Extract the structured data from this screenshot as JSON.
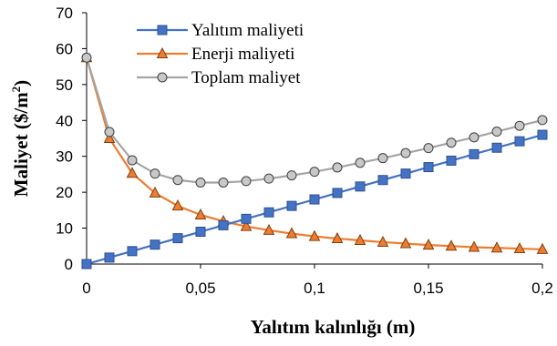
{
  "chart_data": {
    "type": "line",
    "xlabel": "Yalıtım kalınlığı (m)",
    "ylabel": "Maliyet ($/m",
    "ylabel_sup": "2",
    "ylabel_end": ")",
    "xlim": [
      0,
      0.2
    ],
    "ylim": [
      0,
      70
    ],
    "x_ticks": [
      0,
      0.05,
      0.1,
      0.15,
      0.2
    ],
    "x_tick_labels": [
      "0",
      "0,05",
      "0,1",
      "0,15",
      "0,2"
    ],
    "y_ticks": [
      0,
      10,
      20,
      30,
      40,
      50,
      60,
      70
    ],
    "y_tick_labels": [
      "0",
      "10",
      "20",
      "30",
      "40",
      "50",
      "60",
      "70"
    ],
    "grid": false,
    "legend_position": "top-center",
    "x": [
      0,
      0.01,
      0.02,
      0.03,
      0.04,
      0.05,
      0.06,
      0.07,
      0.08,
      0.09,
      0.1,
      0.11,
      0.12,
      0.13,
      0.14,
      0.15,
      0.16,
      0.17,
      0.18,
      0.19,
      0.2
    ],
    "series": [
      {
        "name": "Yalıtım maliyeti",
        "color": "#4472c4",
        "marker": "square",
        "values": [
          0,
          1.8,
          3.6,
          5.4,
          7.2,
          9.0,
          10.8,
          12.6,
          14.4,
          16.2,
          18.0,
          19.8,
          21.6,
          23.4,
          25.2,
          27.0,
          28.8,
          30.6,
          32.4,
          34.2,
          36.0
        ]
      },
      {
        "name": "Enerji maliyeti",
        "color": "#ed7d31",
        "marker": "triangle",
        "values": [
          57.5,
          35.0,
          25.3,
          19.8,
          16.2,
          13.7,
          11.9,
          10.5,
          9.4,
          8.5,
          7.7,
          7.1,
          6.6,
          6.1,
          5.7,
          5.3,
          5.0,
          4.7,
          4.5,
          4.3,
          4.1
        ]
      },
      {
        "name": "Toplam maliyet",
        "color": "#a5a5a5",
        "marker": "circle",
        "values": [
          57.5,
          36.8,
          28.9,
          25.2,
          23.4,
          22.7,
          22.7,
          23.1,
          23.8,
          24.7,
          25.7,
          26.9,
          28.2,
          29.5,
          30.9,
          32.3,
          33.8,
          35.3,
          36.9,
          38.5,
          40.1
        ]
      }
    ]
  }
}
